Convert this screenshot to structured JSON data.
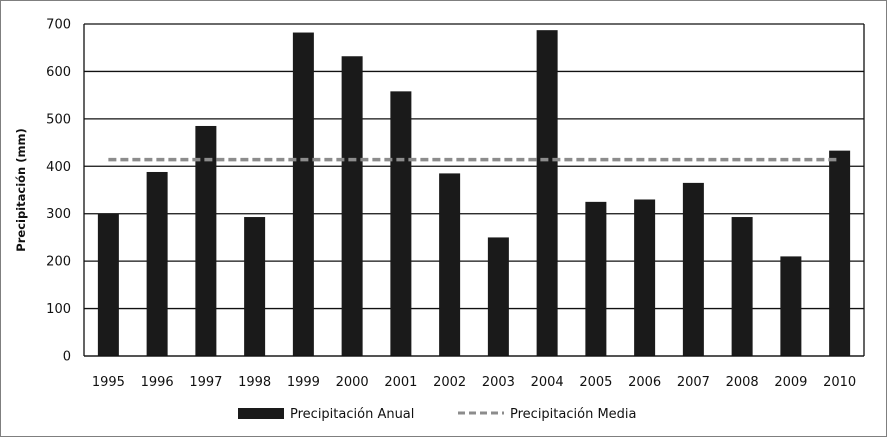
{
  "chart_data": {
    "type": "bar",
    "title": "",
    "xlabel": "",
    "ylabel": "Precipitación (mm)",
    "ylim": [
      0,
      700
    ],
    "yticks": [
      0,
      100,
      200,
      300,
      400,
      500,
      600,
      700
    ],
    "grid": true,
    "legend_position": "bottom",
    "categories": [
      "1995",
      "1996",
      "1997",
      "1998",
      "1999",
      "2000",
      "2001",
      "2002",
      "2003",
      "2004",
      "2005",
      "2006",
      "2007",
      "2008",
      "2009",
      "2010"
    ],
    "series": [
      {
        "name": "Precipitación Anual",
        "type": "bar",
        "color": "#1a1a1a",
        "values": [
          300,
          388,
          485,
          293,
          682,
          632,
          558,
          385,
          250,
          687,
          325,
          330,
          365,
          293,
          210,
          433
        ]
      },
      {
        "name": "Precipitación Media",
        "type": "line",
        "style": "dashed",
        "color": "#8c8c8c",
        "values": [
          414,
          414,
          414,
          414,
          414,
          414,
          414,
          414,
          414,
          414,
          414,
          414,
          414,
          414,
          414,
          414
        ]
      }
    ]
  }
}
